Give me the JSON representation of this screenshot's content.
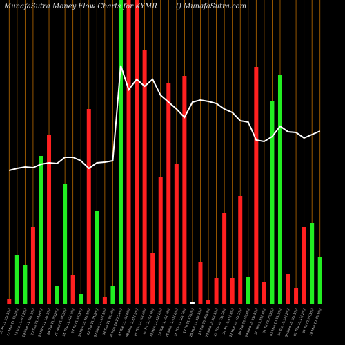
{
  "chart_data": {
    "type": "bar",
    "title": "MunafaSutra  Money Flow  Charts for KYMR",
    "subtitle": "() MunafaSutra.com",
    "categories": [
      "16 Fri 11.35(-1%)",
      "17 Mon 11.62(2%)",
      "18 Tue 11.40(-2%)",
      "19 Wed 11.02(-3%)",
      "20 Thu 11.51(4%)",
      "23 Mon 11.12(-3%)",
      "24 Tue 11.30(2%)",
      "25 Wed 11.64(3%)",
      "26 Thu 11.42(-2%)",
      "27 Fri 11.55(1%)",
      "30 Mon 10.98(-5%)",
      "01 Tue 11.21(2%)",
      "02 Wed 11.15(-1%)",
      "03 Thu 11.33(2%)",
      "06 Mon 14.10(24%)",
      "07 Tue 13.20(-6%)",
      "08 Wed 12.85(-3%)",
      "09 Thu 12.40(-4%)",
      "10 Fri 12.30(-1%)",
      "13 Mon 12.02(-2%)",
      "14 Tue 11.70(-3%)",
      "15 Wed 11.45(-2%)",
      "16 Thu 11.10(-3%)",
      "17 Fri 11.10(0%)",
      "20 Mon 11.02(-1%)",
      "21 Tue 10.99(0%)",
      "22 Wed 10.90(-1%)",
      "23 Thu 10.71(-2%)",
      "24 Fri 10.65(-1%)",
      "27 Mon 10.40(-2%)",
      "28 Tue 10.52(1%)",
      "29 Wed 10.01(-5%)",
      "30 Thu 9.95(-1%)",
      "31 Fri 10.20(3%)",
      "03 Mon 10.55(3%)",
      "04 Tue 10.38(-2%)",
      "05 Wed 10.30(-1%)",
      "06 Thu 10.12(-2%)",
      "07 Fri 10.25(1%)",
      "10 Mon 10.40(1%)"
    ],
    "values": [
      6,
      71,
      56,
      111,
      214,
      244,
      25,
      174,
      41,
      14,
      282,
      134,
      9,
      25,
      440,
      440,
      440,
      367,
      74,
      184,
      320,
      203,
      330,
      2,
      61,
      5,
      37,
      131,
      37,
      156,
      38,
      343,
      31,
      294,
      332,
      43,
      22,
      111,
      117,
      67
    ],
    "colors": [
      "#ff2020",
      "#22ee22",
      "#22ee22",
      "#ff2020",
      "#22ee22",
      "#ff2020",
      "#22ee22",
      "#22ee22",
      "#ff2020",
      "#22ee22",
      "#ff2020",
      "#22ee22",
      "#ff2020",
      "#22ee22",
      "#22ee22",
      "#ff2020",
      "#ff2020",
      "#ff2020",
      "#ff2020",
      "#ff2020",
      "#ff2020",
      "#ff2020",
      "#ff2020",
      "#ffffff",
      "#ff2020",
      "#ff2020",
      "#ff2020",
      "#ff2020",
      "#ff2020",
      "#ff2020",
      "#22ee22",
      "#ff2020",
      "#ff2020",
      "#22ee22",
      "#22ee22",
      "#ff2020",
      "#ff2020",
      "#ff2020",
      "#22ee22",
      "#22ee22"
    ],
    "line": {
      "color": "#ffffff",
      "values": [
        193,
        196,
        198,
        197,
        202,
        204,
        203,
        212,
        212,
        207,
        196,
        204,
        205,
        207,
        345,
        310,
        325,
        315,
        325,
        302,
        292,
        282,
        270,
        292,
        295,
        293,
        290,
        282,
        277,
        265,
        263,
        237,
        235,
        242,
        257,
        249,
        248,
        240,
        245,
        250
      ]
    },
    "ylim": [
      0,
      440
    ]
  }
}
